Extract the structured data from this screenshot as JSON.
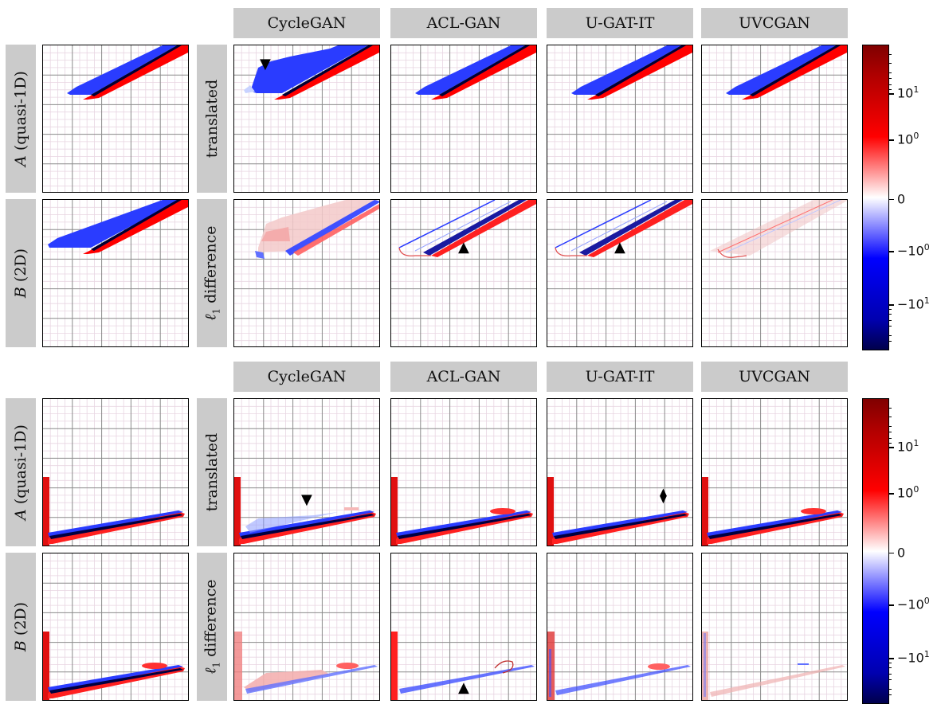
{
  "method_headers": [
    "CycleGAN",
    "ACL-GAN",
    "U-GAT-IT",
    "UVCGAN"
  ],
  "domain_labels": {
    "a_var": "A",
    "a_text": "(quasi-1D)",
    "b_var": "B",
    "b_text": "(2D)"
  },
  "row_labels": {
    "translated": "translated",
    "difference_symbol": "ℓ",
    "difference_subscript": "1",
    "difference_text": "difference"
  },
  "colorbar": {
    "colormap": "seismic",
    "scale": "symlog",
    "tick_labels": [
      {
        "base": "10",
        "exp": "1"
      },
      {
        "base": "10",
        "exp": "0"
      },
      {
        "base": "0",
        "exp": ""
      },
      {
        "base": "−10",
        "exp": "0"
      },
      {
        "base": "−10",
        "exp": "1"
      }
    ],
    "colors": {
      "max": "#800000",
      "pos": "#ff0000",
      "zero": "#ffffff",
      "neg": "#0000ff",
      "min": "#00004c"
    }
  },
  "markers": {
    "down_triangle": "▼",
    "up_triangle": "▲",
    "diamond": "⧫"
  }
}
